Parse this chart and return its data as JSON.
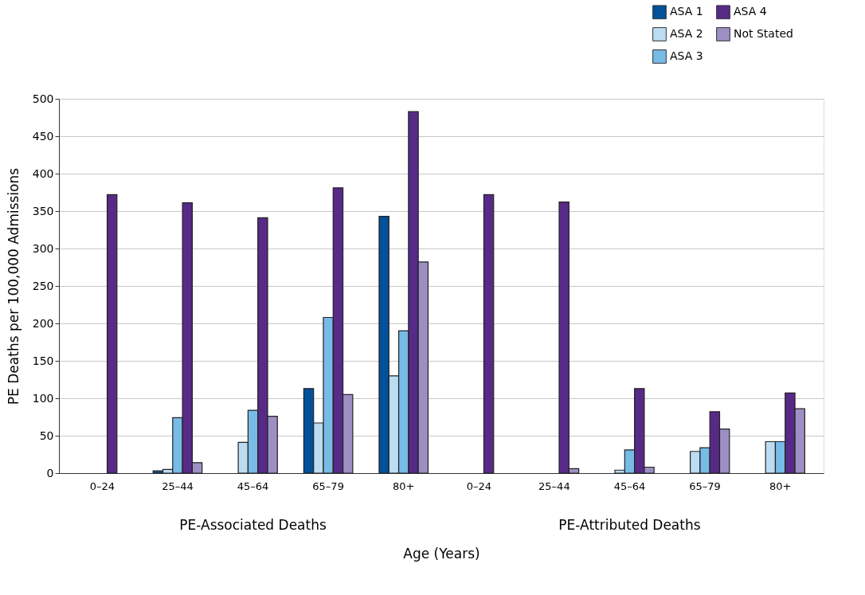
{
  "chart_data": {
    "type": "bar",
    "xlabel": "Age (Years)",
    "ylabel": "PE Deaths per 100,000 Admissions",
    "categories": [
      "0–24",
      "25–44",
      "45–64",
      "65–79",
      "80+",
      "0–24",
      "25–44",
      "45–64",
      "65–79",
      "80+"
    ],
    "series": [
      {
        "name": "ASA 1",
        "color": "#02519a",
        "values": [
          null,
          3,
          null,
          113,
          343,
          null,
          null,
          null,
          null,
          null
        ]
      },
      {
        "name": "ASA 2",
        "color": "#bcdcf2",
        "values": [
          null,
          5,
          41,
          67,
          130,
          null,
          null,
          4,
          29,
          42
        ]
      },
      {
        "name": "ASA 3",
        "color": "#77bbe6",
        "values": [
          null,
          74,
          84,
          208,
          190,
          null,
          null,
          31,
          34,
          42
        ]
      },
      {
        "name": "ASA 4",
        "color": "#572a88",
        "values": [
          372,
          361,
          341,
          381,
          483,
          372,
          362,
          113,
          82,
          107
        ]
      },
      {
        "name": "Not Stated",
        "color": "#9d8fc3",
        "values": [
          null,
          14,
          76,
          105,
          282,
          null,
          6,
          8,
          59,
          86
        ]
      }
    ],
    "annotations": [
      "PE-Associated Deaths",
      "PE-Attributed Deaths"
    ],
    "ylim": [
      0,
      500
    ],
    "yticks": [
      0,
      50,
      100,
      150,
      200,
      250,
      300,
      350,
      400,
      450,
      500
    ],
    "grid": "y",
    "legend": "top right"
  }
}
